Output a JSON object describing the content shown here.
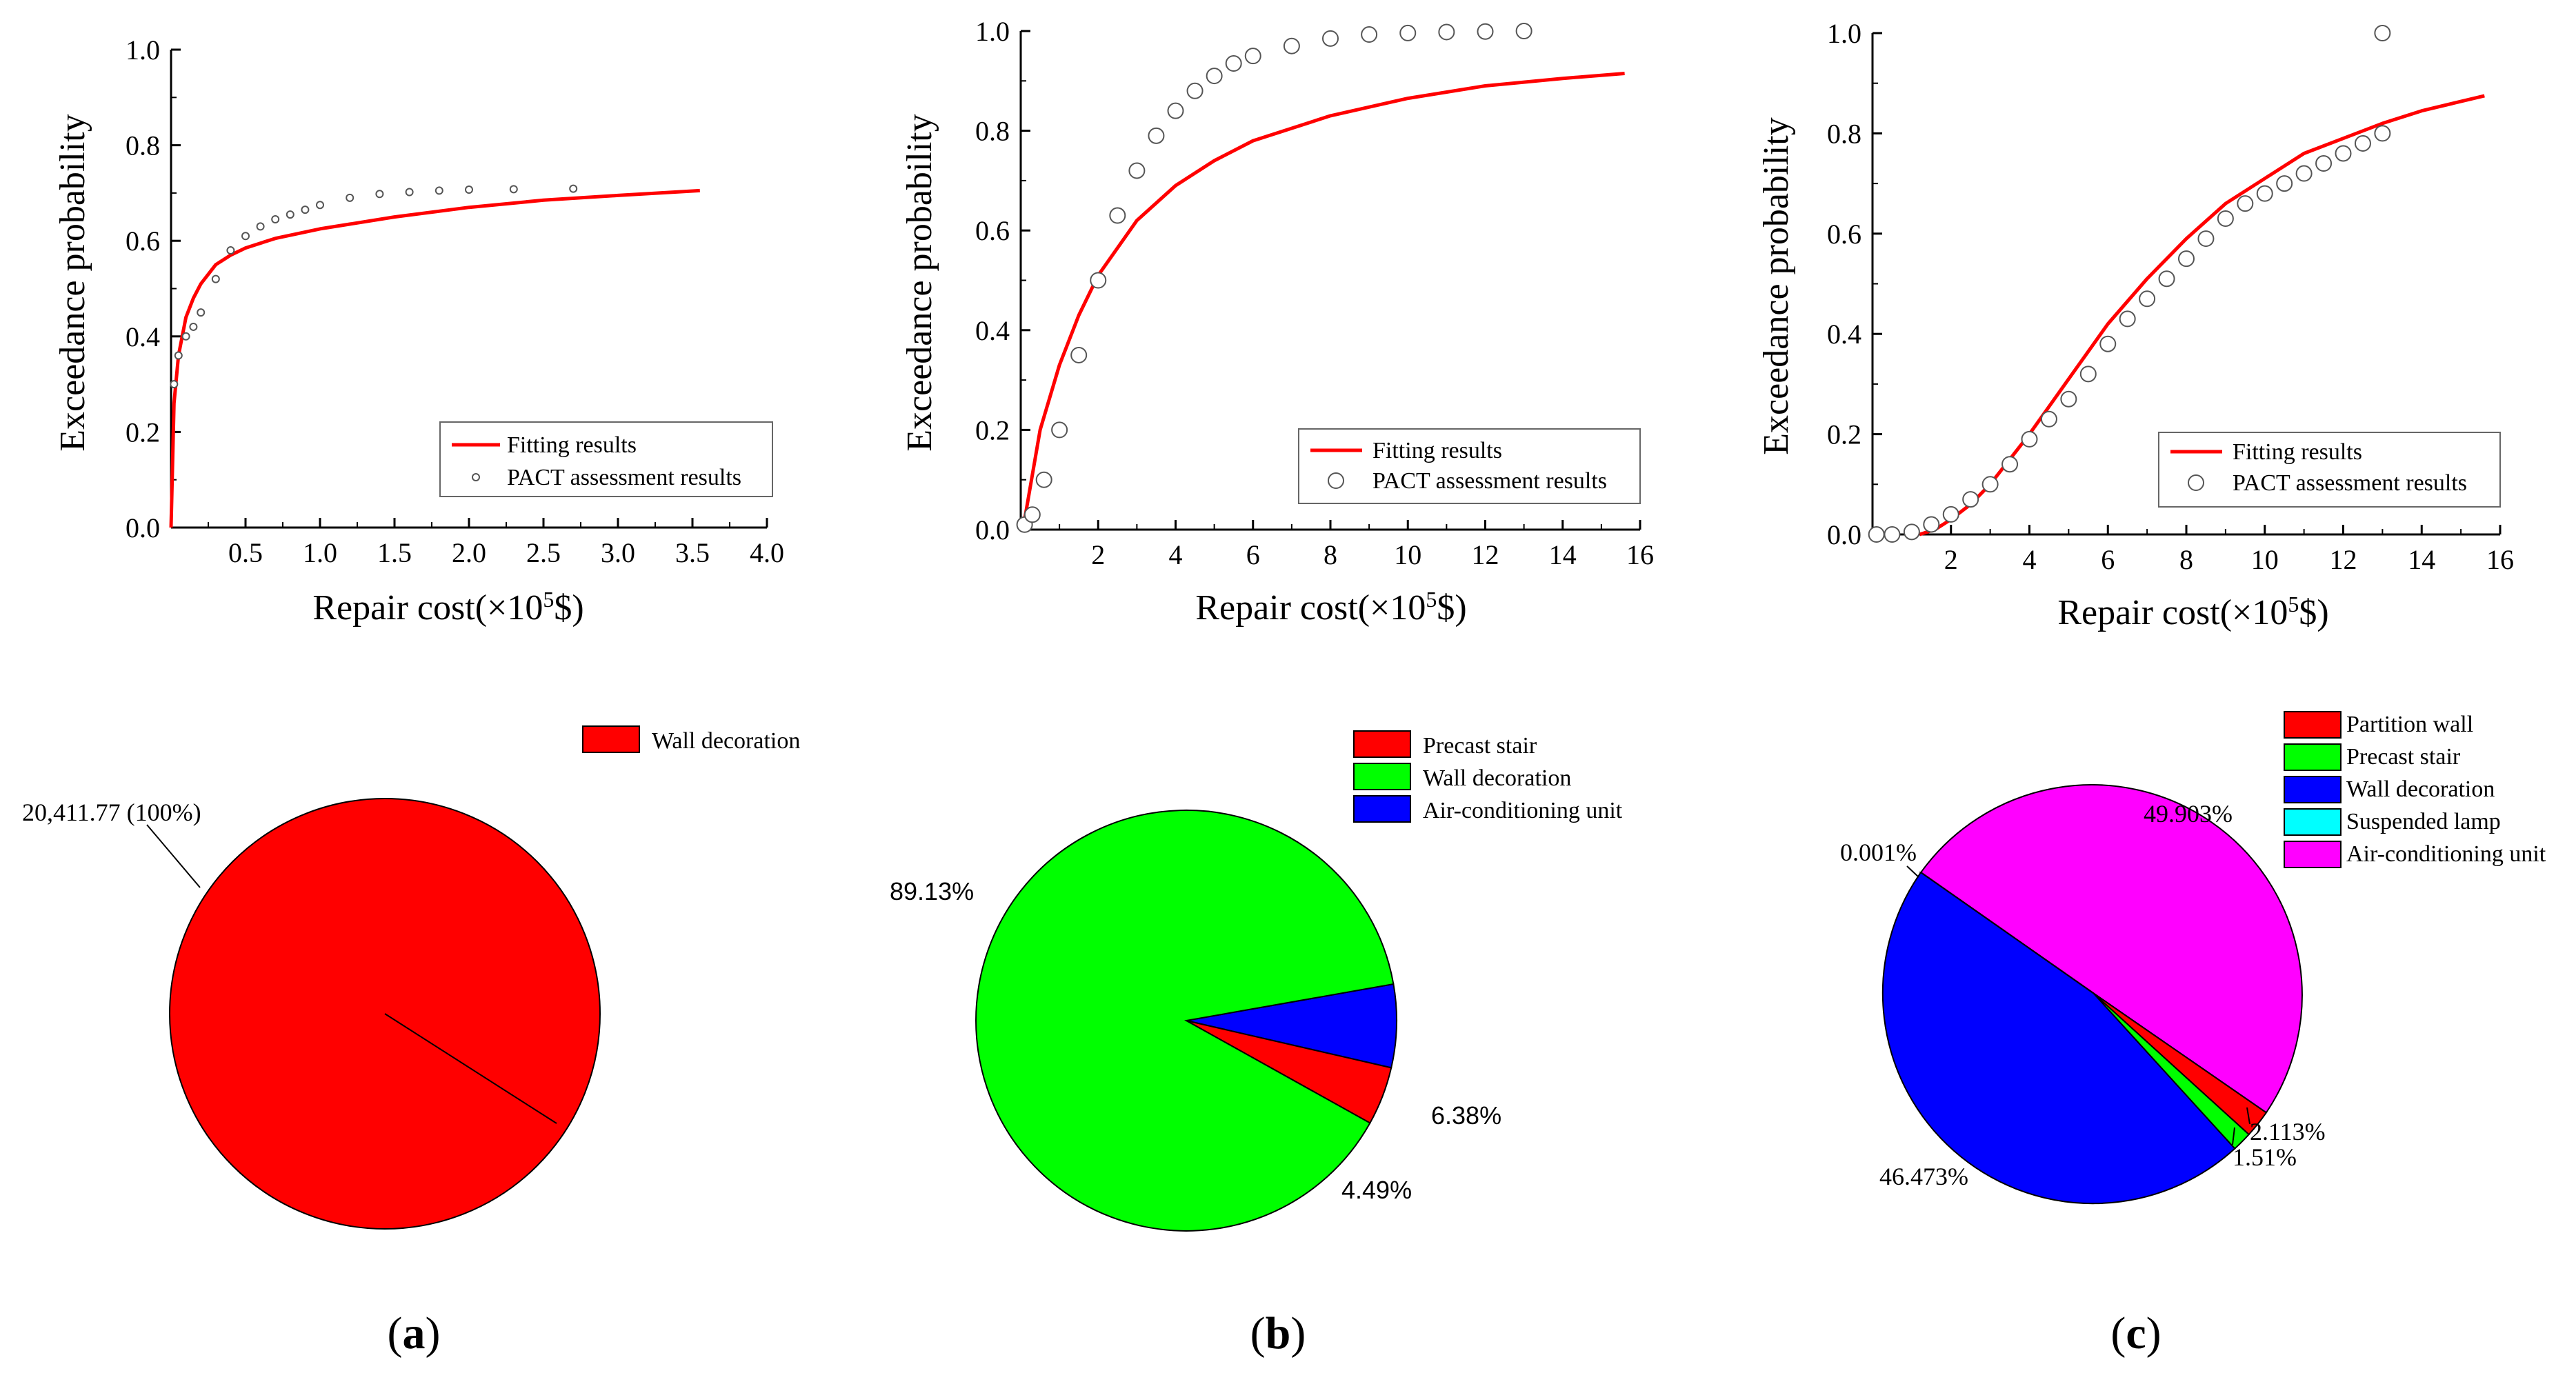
{
  "panels": [
    {
      "label_open": "(",
      "label_letter": "a",
      "label_close": ")",
      "cdf": {
        "type": "line",
        "xlabel": "Repair cost(×10",
        "xlabel_sup": "5",
        "xlabel_tail": "$)",
        "ylabel": "Exceedance probability",
        "xlim": [
          0,
          4.0
        ],
        "ylim": [
          0,
          1.0
        ],
        "xticks": [
          "0.5",
          "1.0",
          "1.5",
          "2.0",
          "2.5",
          "3.0",
          "3.5",
          "4.0"
        ],
        "yticks": [
          "0.0",
          "0.2",
          "0.4",
          "0.6",
          "0.8",
          "1.0"
        ],
        "legend": [
          "Fitting results",
          "PACT assessment results"
        ],
        "series": [
          {
            "name": "Fitting results",
            "color": "#ff0000",
            "x": [
              0.0,
              0.02,
              0.05,
              0.1,
              0.15,
              0.2,
              0.3,
              0.4,
              0.5,
              0.7,
              1.0,
              1.5,
              2.0,
              2.5,
              3.0,
              3.55
            ],
            "y": [
              0.0,
              0.26,
              0.36,
              0.44,
              0.48,
              0.51,
              0.55,
              0.57,
              0.585,
              0.605,
              0.625,
              0.65,
              0.67,
              0.685,
              0.695,
              0.705
            ]
          },
          {
            "name": "PACT assessment results",
            "color": "#555555",
            "x": [
              0.02,
              0.05,
              0.1,
              0.15,
              0.2,
              0.3,
              0.4,
              0.5,
              0.6,
              0.7,
              0.8,
              0.9,
              1.0,
              1.2,
              1.4,
              1.6,
              1.8,
              2.0,
              2.3,
              2.7
            ],
            "y": [
              0.3,
              0.36,
              0.4,
              0.42,
              0.45,
              0.52,
              0.58,
              0.61,
              0.63,
              0.645,
              0.655,
              0.665,
              0.675,
              0.69,
              0.698,
              0.702,
              0.705,
              0.707,
              0.708,
              0.709
            ]
          }
        ]
      },
      "pie": {
        "type": "pie",
        "legend": [
          {
            "name": "Wall decoration",
            "color": "#ff0000"
          }
        ],
        "slices": [
          {
            "name": "Wall decoration",
            "value": 100,
            "color": "#ff0000"
          }
        ],
        "labels": [
          "20,411.77 (100%)"
        ]
      }
    },
    {
      "label_open": "(",
      "label_letter": "b",
      "label_close": ")",
      "cdf": {
        "type": "line",
        "xlabel": "Repair cost(×10",
        "xlabel_sup": "5",
        "xlabel_tail": "$)",
        "ylabel": "Exceedance probability",
        "xlim": [
          0,
          16
        ],
        "ylim": [
          0,
          1.0
        ],
        "xticks": [
          "2",
          "4",
          "6",
          "8",
          "10",
          "12",
          "14",
          "16"
        ],
        "yticks": [
          "0.0",
          "0.2",
          "0.4",
          "0.6",
          "0.8",
          "1.0"
        ],
        "legend": [
          "Fitting results",
          "PACT assessment results"
        ],
        "series": [
          {
            "name": "Fitting results",
            "color": "#ff0000",
            "x": [
              0.1,
              0.5,
              1.0,
              1.5,
              2.0,
              3.0,
              4.0,
              5.0,
              6.0,
              8.0,
              10.0,
              12.0,
              14.0,
              15.6
            ],
            "y": [
              0.02,
              0.2,
              0.33,
              0.43,
              0.51,
              0.62,
              0.69,
              0.74,
              0.78,
              0.83,
              0.865,
              0.89,
              0.905,
              0.915
            ]
          },
          {
            "name": "PACT assessment results",
            "color": "#555555",
            "x": [
              0.1,
              0.3,
              0.6,
              1.0,
              1.5,
              2.0,
              2.5,
              3.0,
              3.5,
              4.0,
              4.5,
              5.0,
              5.5,
              6.0,
              7.0,
              8.0,
              9.0,
              10.0,
              11.0,
              12.0,
              13.0
            ],
            "y": [
              0.01,
              0.03,
              0.1,
              0.2,
              0.35,
              0.5,
              0.63,
              0.72,
              0.79,
              0.84,
              0.88,
              0.91,
              0.935,
              0.95,
              0.97,
              0.985,
              0.993,
              0.996,
              0.998,
              0.999,
              1.0
            ]
          }
        ]
      },
      "pie": {
        "type": "pie",
        "legend": [
          {
            "name": "Precast stair",
            "color": "#ff0000"
          },
          {
            "name": "Wall decoration",
            "color": "#00ff00"
          },
          {
            "name": "Air-conditioning unit",
            "color": "#0000ff"
          }
        ],
        "slices": [
          {
            "name": "Air-conditioning unit",
            "value": 6.38,
            "color": "#0000ff"
          },
          {
            "name": "Precast stair",
            "value": 4.49,
            "color": "#ff0000"
          },
          {
            "name": "Wall decoration",
            "value": 89.13,
            "color": "#00ff00"
          }
        ],
        "labels": [
          "89.13%",
          "6.38%",
          "4.49%"
        ]
      }
    },
    {
      "label_open": "(",
      "label_letter": "c",
      "label_close": ")",
      "cdf": {
        "type": "line",
        "xlabel": "Repair cost(×10",
        "xlabel_sup": "5",
        "xlabel_tail": "$)",
        "ylabel": "Exceedance probability",
        "xlim": [
          0,
          16
        ],
        "ylim": [
          0,
          1.0
        ],
        "xticks": [
          "2",
          "4",
          "6",
          "8",
          "10",
          "12",
          "14",
          "16"
        ],
        "yticks": [
          "0.0",
          "0.2",
          "0.4",
          "0.6",
          "0.8",
          "1.0"
        ],
        "legend": [
          "Fitting results",
          "PACT assessment results"
        ],
        "series": [
          {
            "name": "Fitting results",
            "color": "#ff0000",
            "x": [
              1.2,
              1.6,
              2.0,
              2.5,
              3.0,
              3.5,
              4.0,
              5.0,
              6.0,
              7.0,
              8.0,
              9.0,
              10.0,
              11.0,
              12.0,
              13.0,
              14.0,
              15.6
            ],
            "y": [
              0.0,
              0.01,
              0.03,
              0.06,
              0.1,
              0.15,
              0.2,
              0.31,
              0.42,
              0.51,
              0.59,
              0.66,
              0.71,
              0.76,
              0.79,
              0.82,
              0.845,
              0.875
            ]
          },
          {
            "name": "PACT assessment results",
            "color": "#555555",
            "x": [
              0.1,
              0.5,
              1.0,
              1.5,
              2.0,
              2.5,
              3.0,
              3.5,
              4.0,
              4.5,
              5.0,
              5.5,
              6.0,
              6.5,
              7.0,
              7.5,
              8.0,
              8.5,
              9.0,
              9.5,
              10.0,
              10.5,
              11.0,
              11.5,
              12.0,
              12.5,
              13.0,
              13.0
            ],
            "y": [
              0.0,
              0.0,
              0.005,
              0.02,
              0.04,
              0.07,
              0.1,
              0.14,
              0.19,
              0.23,
              0.27,
              0.32,
              0.38,
              0.43,
              0.47,
              0.51,
              0.55,
              0.59,
              0.63,
              0.66,
              0.68,
              0.7,
              0.72,
              0.74,
              0.76,
              0.78,
              0.8,
              1.0
            ]
          }
        ]
      },
      "pie": {
        "type": "pie",
        "legend": [
          {
            "name": "Partition wall",
            "color": "#ff0000"
          },
          {
            "name": "Precast stair",
            "color": "#00ff00"
          },
          {
            "name": "Wall decoration",
            "color": "#0000ff"
          },
          {
            "name": "Suspended lamp",
            "color": "#00ffff"
          },
          {
            "name": "Air-conditioning unit",
            "color": "#ff00ff"
          }
        ],
        "slices": [
          {
            "name": "Air-conditioning unit",
            "value": 49.903,
            "color": "#ff00ff"
          },
          {
            "name": "Partition wall",
            "value": 2.113,
            "color": "#ff0000"
          },
          {
            "name": "Precast stair",
            "value": 1.51,
            "color": "#00ff00"
          },
          {
            "name": "Wall decoration",
            "value": 46.473,
            "color": "#0000ff"
          },
          {
            "name": "Suspended lamp",
            "value": 0.001,
            "color": "#00ffff"
          }
        ],
        "labels": [
          "49.903%",
          "0.001%",
          "2.113%",
          "1.51%",
          "46.473%"
        ]
      }
    }
  ]
}
